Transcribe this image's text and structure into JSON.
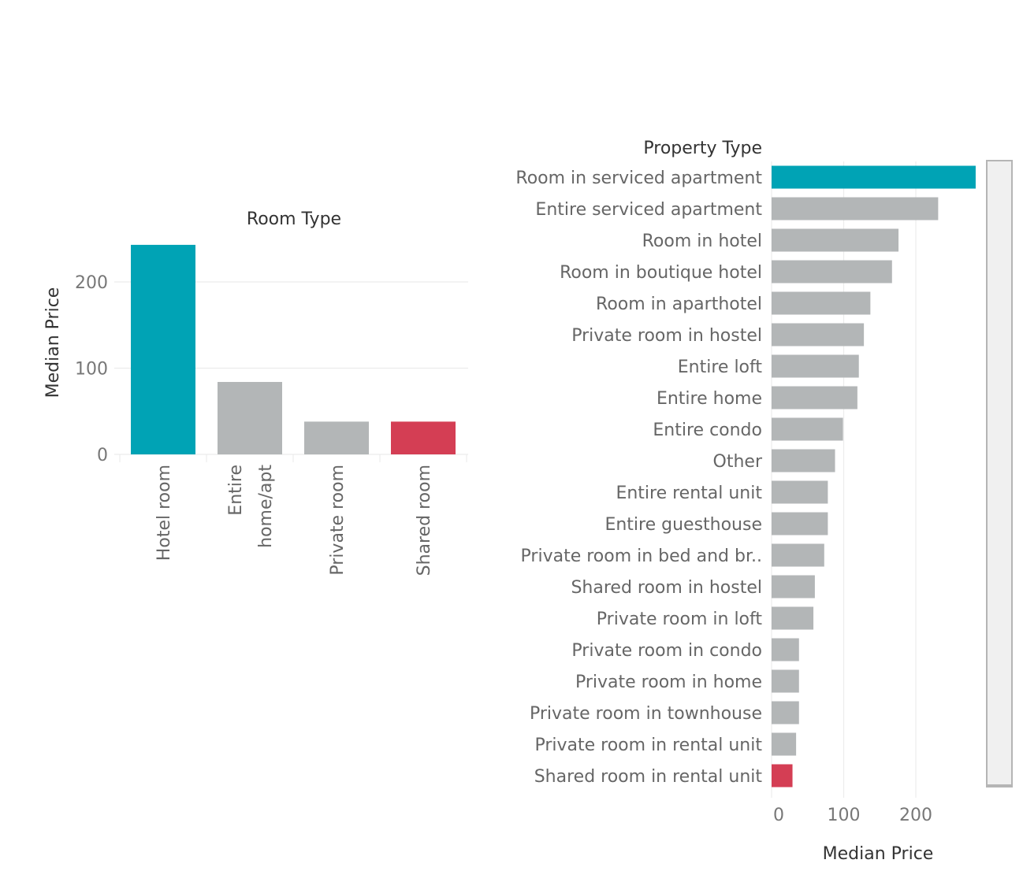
{
  "chart_data": [
    {
      "type": "bar",
      "orientation": "vertical",
      "title": "",
      "xlabel": "Room Type",
      "ylabel": "Median Price",
      "ylim": [
        0,
        250
      ],
      "yticks": [
        0,
        100,
        200
      ],
      "grid": true,
      "categories": [
        "Hotel room",
        "Entire home/apt",
        "Private room",
        "Shared room"
      ],
      "category_lines": [
        [
          "Hotel room"
        ],
        [
          "Entire",
          "home/apt"
        ],
        [
          "Private room"
        ],
        [
          "Shared room"
        ]
      ],
      "values": [
        243,
        84,
        38,
        38
      ],
      "colors": [
        "#00a3b5",
        "#b3b6b7",
        "#b3b6b7",
        "#d43e54"
      ]
    },
    {
      "type": "bar",
      "orientation": "horizontal",
      "title": "",
      "ylabel": "Property Type",
      "xlabel": "Median Price",
      "xlim": [
        0,
        290
      ],
      "xticks": [
        0,
        100,
        200
      ],
      "grid": true,
      "categories": [
        "Room in serviced apartment",
        "Entire serviced apartment",
        "Room in hotel",
        "Room in boutique hotel",
        "Room in aparthotel",
        "Private room in hostel",
        "Entire loft",
        "Entire home",
        "Entire condo",
        "Other",
        "Entire rental unit",
        "Entire guesthouse",
        "Private room in bed and br..",
        "Shared room in hostel",
        "Private room in loft",
        "Private room in condo",
        "Private room in home",
        "Private room in townhouse",
        "Private room in rental unit",
        "Shared room in rental unit"
      ],
      "values": [
        283,
        231,
        176,
        167,
        137,
        128,
        121,
        119,
        99,
        88,
        78,
        78,
        73,
        60,
        58,
        38,
        38,
        38,
        34,
        29
      ],
      "colors": [
        "#00a3b5",
        "#b3b6b7",
        "#b3b6b7",
        "#b3b6b7",
        "#b3b6b7",
        "#b3b6b7",
        "#b3b6b7",
        "#b3b6b7",
        "#b3b6b7",
        "#b3b6b7",
        "#b3b6b7",
        "#b3b6b7",
        "#b3b6b7",
        "#b3b6b7",
        "#b3b6b7",
        "#b3b6b7",
        "#b3b6b7",
        "#b3b6b7",
        "#b3b6b7",
        "#d43e54"
      ]
    }
  ]
}
